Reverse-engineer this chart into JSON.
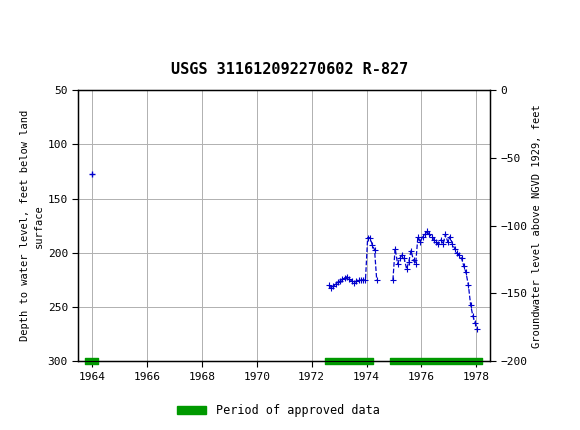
{
  "title": "USGS 311612092270602 R-827",
  "ylabel_left": "Depth to water level, feet below land\nsurface",
  "ylabel_right": "Groundwater level above NGVD 1929, feet",
  "xlim": [
    1963.5,
    1978.5
  ],
  "ylim_left": [
    300,
    50
  ],
  "ylim_right": [
    -200,
    0
  ],
  "xticks": [
    1964,
    1966,
    1968,
    1970,
    1972,
    1974,
    1976,
    1978
  ],
  "yticks_left": [
    50,
    100,
    150,
    200,
    250,
    300
  ],
  "yticks_right": [
    0,
    -50,
    -100,
    -150,
    -200
  ],
  "header_color": "#1a6b3c",
  "grid_color": "#b0b0b0",
  "line_color": "#0000cc",
  "approved_color": "#009900",
  "segment1_x": [
    1964.0
  ],
  "segment1_y": [
    127
  ],
  "segment2_x": [
    1972.62,
    1972.71,
    1972.79,
    1972.87,
    1972.96,
    1973.04,
    1973.12,
    1973.21,
    1973.29,
    1973.37,
    1973.46,
    1973.54,
    1973.62,
    1973.71,
    1973.79,
    1973.87,
    1973.96,
    1974.04,
    1974.13,
    1974.21,
    1974.29,
    1974.37
  ],
  "segment2_y": [
    230,
    232,
    231,
    229,
    227,
    226,
    224,
    223,
    222,
    224,
    226,
    228,
    226,
    225,
    225,
    225,
    225,
    186,
    186,
    193,
    197,
    225
  ],
  "segment3_x": [
    1974.96,
    1975.04,
    1975.13,
    1975.21,
    1975.29,
    1975.37,
    1975.46,
    1975.54,
    1975.62,
    1975.71,
    1975.79,
    1975.87,
    1975.96,
    1976.04,
    1976.13,
    1976.21,
    1976.29,
    1976.37,
    1976.46,
    1976.54,
    1976.62,
    1976.71,
    1976.79,
    1976.87,
    1976.96,
    1977.04,
    1977.13,
    1977.21,
    1977.29,
    1977.37,
    1977.46,
    1977.54,
    1977.62,
    1977.71,
    1977.79,
    1977.87,
    1977.96,
    1978.04
  ],
  "segment3_y": [
    225,
    196,
    210,
    205,
    202,
    205,
    215,
    208,
    198,
    207,
    210,
    185,
    190,
    185,
    183,
    180,
    183,
    185,
    188,
    190,
    192,
    188,
    192,
    183,
    190,
    185,
    192,
    196,
    200,
    202,
    205,
    212,
    218,
    230,
    248,
    258,
    265,
    270
  ],
  "approved_bars": [
    {
      "x_start": 1963.75,
      "x_end": 1964.2
    },
    {
      "x_start": 1972.5,
      "x_end": 1974.25
    },
    {
      "x_start": 1974.87,
      "x_end": 1978.2
    }
  ],
  "legend_label": "Period of approved data"
}
